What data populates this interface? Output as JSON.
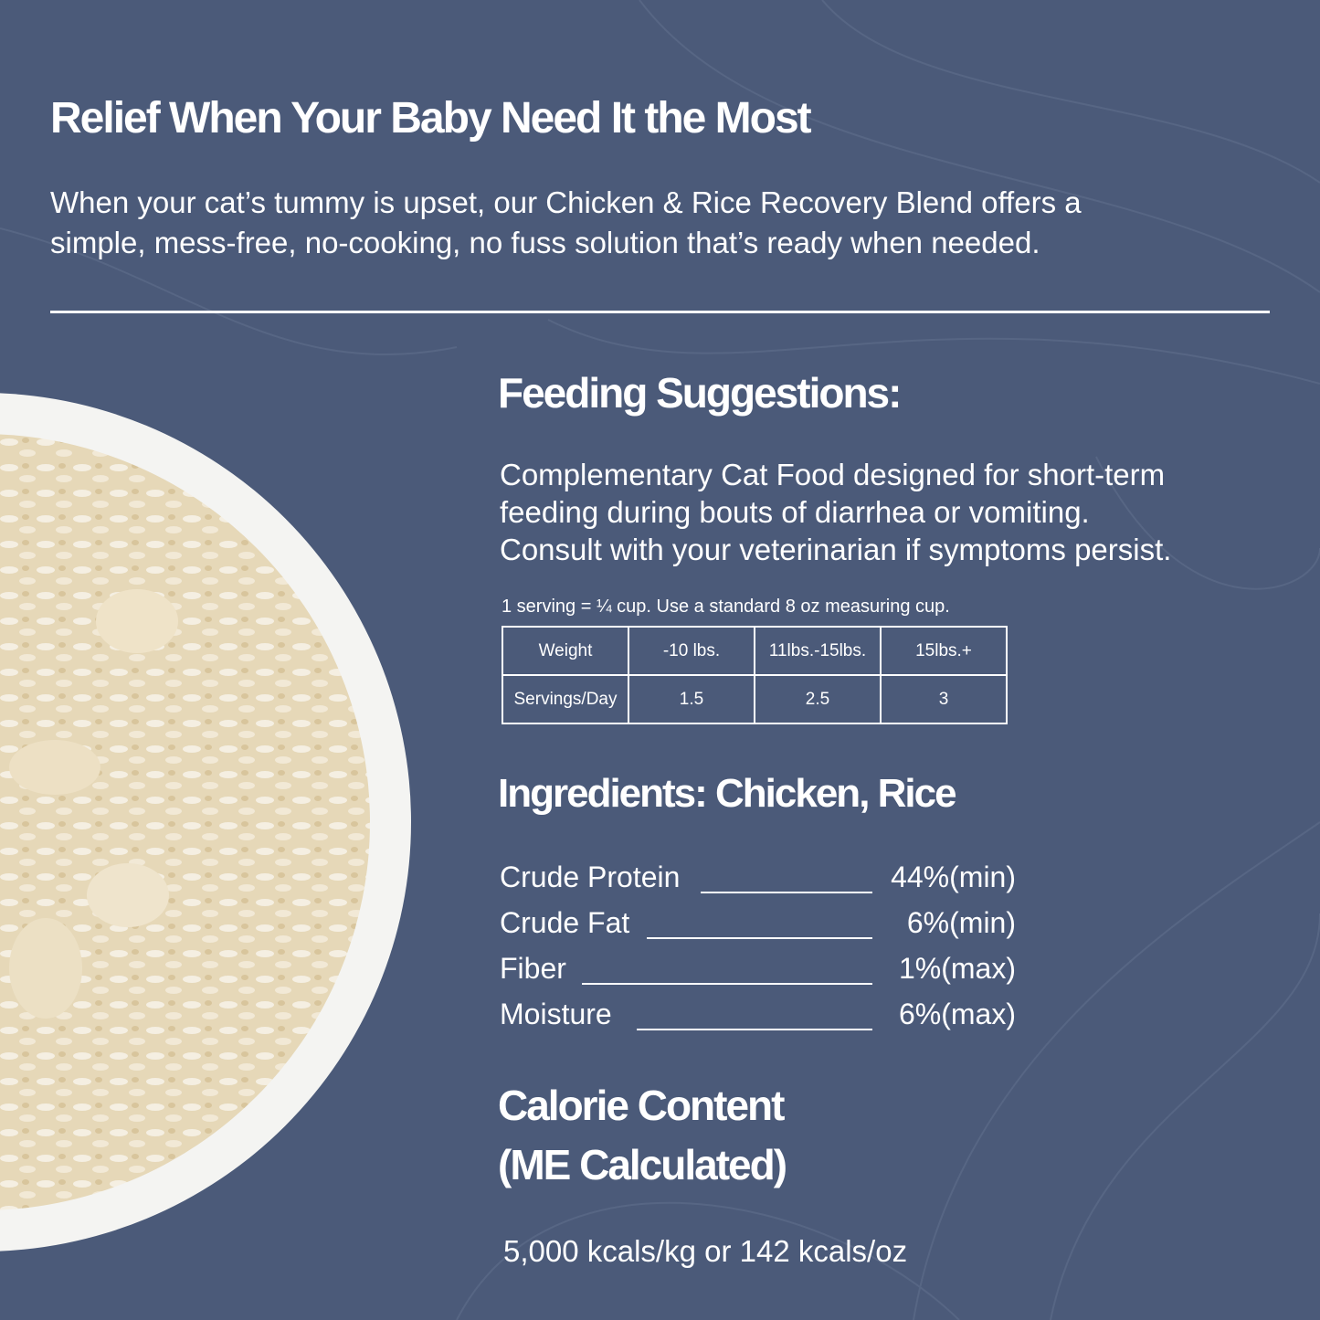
{
  "colors": {
    "background": "#4b5a79",
    "text": "#ffffff"
  },
  "header": {
    "title": "Relief When Your Baby Need It the Most",
    "description_lines": [
      "When your cat’s tummy is upset, our Chicken & Rice Recovery Blend offers a",
      "simple, mess-free, no-cooking, no fuss solution that’s ready when needed."
    ]
  },
  "feeding": {
    "title": "Feeding Suggestions:",
    "lines": [
      "Complementary Cat Food designed for short-term",
      "feeding during bouts of diarrhea or vomiting.",
      "Consult with your veterinarian if symptoms persist."
    ],
    "serving_note": "1 serving = ¼ cup. Use a standard 8 oz measuring cup.",
    "table": {
      "rows": [
        [
          "Weight",
          "-10 lbs.",
          "11lbs.-15lbs.",
          "15lbs.+"
        ],
        [
          "Servings/Day",
          "1.5",
          "2.5",
          "3"
        ]
      ]
    }
  },
  "ingredients": {
    "title": "Ingredients: Chicken, Rice",
    "analysis": [
      {
        "label": "Crude Protein",
        "value": "44%(min)"
      },
      {
        "label": "Crude Fat",
        "value": "6%(min)"
      },
      {
        "label": "Fiber",
        "value": "1%(max)"
      },
      {
        "label": "Moisture",
        "value": "6%(max)"
      }
    ]
  },
  "calorie": {
    "title_line1": "Calorie Content",
    "title_line2": "(ME Calculated)",
    "value": "5,000 kcals/kg or 142 kcals/oz"
  },
  "image": {
    "subject": "bowl-of-chicken-and-rice"
  }
}
